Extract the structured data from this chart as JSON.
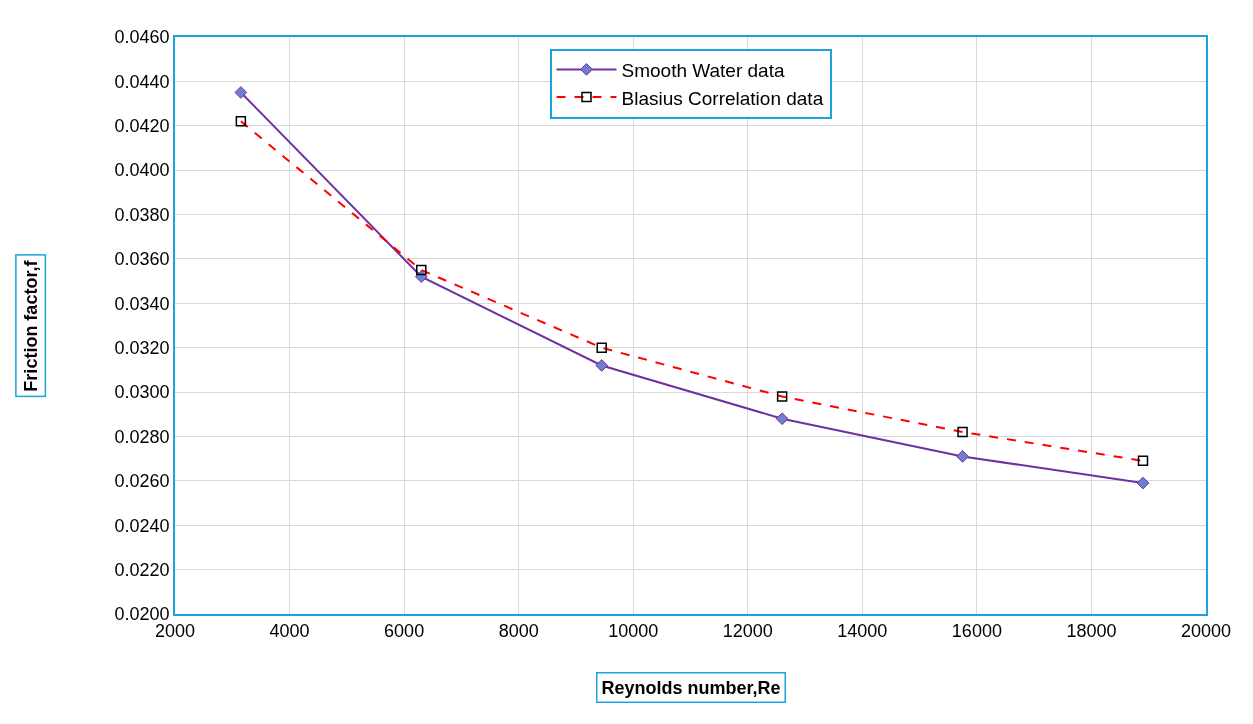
{
  "chart_data": {
    "type": "line",
    "xlabel": "Reynolds number,Re",
    "ylabel": "Friction factor,f",
    "x": [
      3150,
      6300,
      9450,
      12600,
      15750,
      18900
    ],
    "series": [
      {
        "name": "Smooth Water data",
        "color": "#7030a0",
        "values": [
          0.0435,
          0.0352,
          0.0312,
          0.0288,
          0.0271,
          0.0259
        ],
        "marker": "diamond",
        "line_style": "solid"
      },
      {
        "name": "Blasius Correlation data",
        "color": "#ff0000",
        "values": [
          0.0422,
          0.0355,
          0.032,
          0.0298,
          0.0282,
          0.0269
        ],
        "marker": "square",
        "line_style": "dashed"
      }
    ],
    "xlim": [
      2000,
      20000
    ],
    "xticks": [
      2000,
      4000,
      6000,
      8000,
      10000,
      12000,
      14000,
      16000,
      18000,
      20000
    ],
    "ylim": [
      0.02,
      0.046
    ],
    "yticks": [
      {
        "value": 0.02,
        "label": "0.0200"
      },
      {
        "value": 0.022,
        "label": "0.0220"
      },
      {
        "value": 0.024,
        "label": "0.0240"
      },
      {
        "value": 0.026,
        "label": "0.0260"
      },
      {
        "value": 0.028,
        "label": "0.0280"
      },
      {
        "value": 0.03,
        "label": "0.0300"
      },
      {
        "value": 0.032,
        "label": "0.0320"
      },
      {
        "value": 0.034,
        "label": "0.0340"
      },
      {
        "value": 0.036,
        "label": "0.0360"
      },
      {
        "value": 0.038,
        "label": "0.0380"
      },
      {
        "value": 0.04,
        "label": "0.0400"
      },
      {
        "value": 0.042,
        "label": "0.0420"
      },
      {
        "value": 0.044,
        "label": "0.0440"
      },
      {
        "value": 0.046,
        "label": "0.0460"
      }
    ],
    "grid": true,
    "legend": "top"
  }
}
